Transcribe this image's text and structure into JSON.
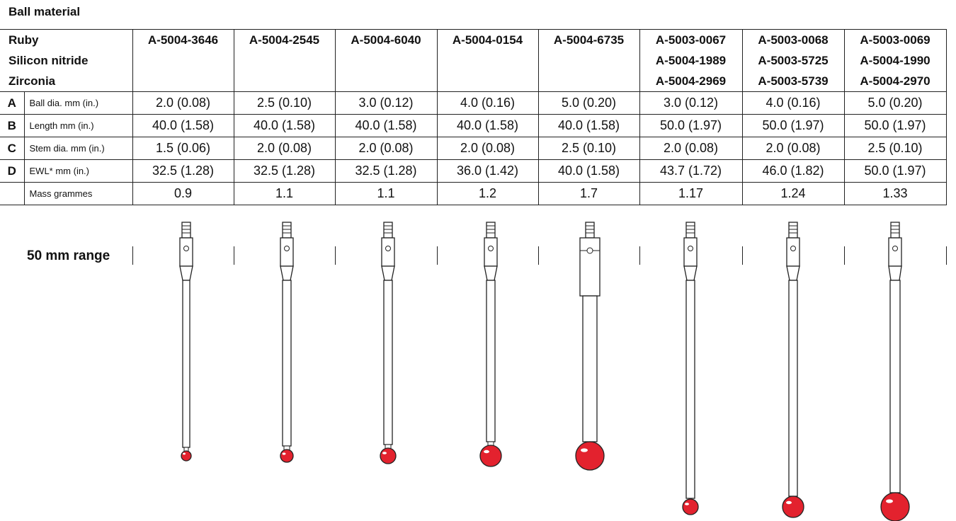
{
  "caption": "Ball material",
  "materials": [
    "Ruby",
    "Silicon nitride",
    "Zirconia"
  ],
  "part_numbers": [
    [
      "A-5004-3646",
      "",
      ""
    ],
    [
      "A-5004-2545",
      "",
      ""
    ],
    [
      "A-5004-6040",
      "",
      ""
    ],
    [
      "A-5004-0154",
      "",
      ""
    ],
    [
      "A-5004-6735",
      "",
      ""
    ],
    [
      "A-5003-0067",
      "A-5004-1989",
      "A-5004-2969"
    ],
    [
      "A-5003-0068",
      "A-5003-5725",
      "A-5003-5739"
    ],
    [
      "A-5003-0069",
      "A-5004-1990",
      "A-5004-2970"
    ]
  ],
  "properties": [
    {
      "letter": "A",
      "label": "Ball dia. mm (in.)",
      "values": [
        "2.0 (0.08)",
        "2.5 (0.10)",
        "3.0 (0.12)",
        "4.0 (0.16)",
        "5.0 (0.20)",
        "3.0 (0.12)",
        "4.0 (0.16)",
        "5.0 (0.20)"
      ]
    },
    {
      "letter": "B",
      "label": "Length mm (in.)",
      "values": [
        "40.0 (1.58)",
        "40.0 (1.58)",
        "40.0 (1.58)",
        "40.0 (1.58)",
        "40.0 (1.58)",
        "50.0 (1.97)",
        "50.0 (1.97)",
        "50.0 (1.97)"
      ]
    },
    {
      "letter": "C",
      "label": "Stem dia. mm (in.)",
      "values": [
        "1.5 (0.06)",
        "2.0 (0.08)",
        "2.0 (0.08)",
        "2.0 (0.08)",
        "2.5 (0.10)",
        "2.0 (0.08)",
        "2.0 (0.08)",
        "2.5 (0.10)"
      ]
    },
    {
      "letter": "D",
      "label": "EWL* mm (in.)",
      "values": [
        "32.5 (1.28)",
        "32.5 (1.28)",
        "32.5 (1.28)",
        "36.0 (1.42)",
        "40.0 (1.58)",
        "43.7 (1.72)",
        "46.0 (1.82)",
        "50.0 (1.97)"
      ]
    },
    {
      "letter": "",
      "label": "Mass grammes",
      "values": [
        "0.9",
        "1.1",
        "1.1",
        "1.2",
        "1.7",
        "1.17",
        "1.24",
        "1.33"
      ]
    }
  ],
  "range_label": "50 mm range",
  "colors": {
    "ball": "#e3222e",
    "ball_highlight": "#ffffff",
    "line": "#222222"
  }
}
